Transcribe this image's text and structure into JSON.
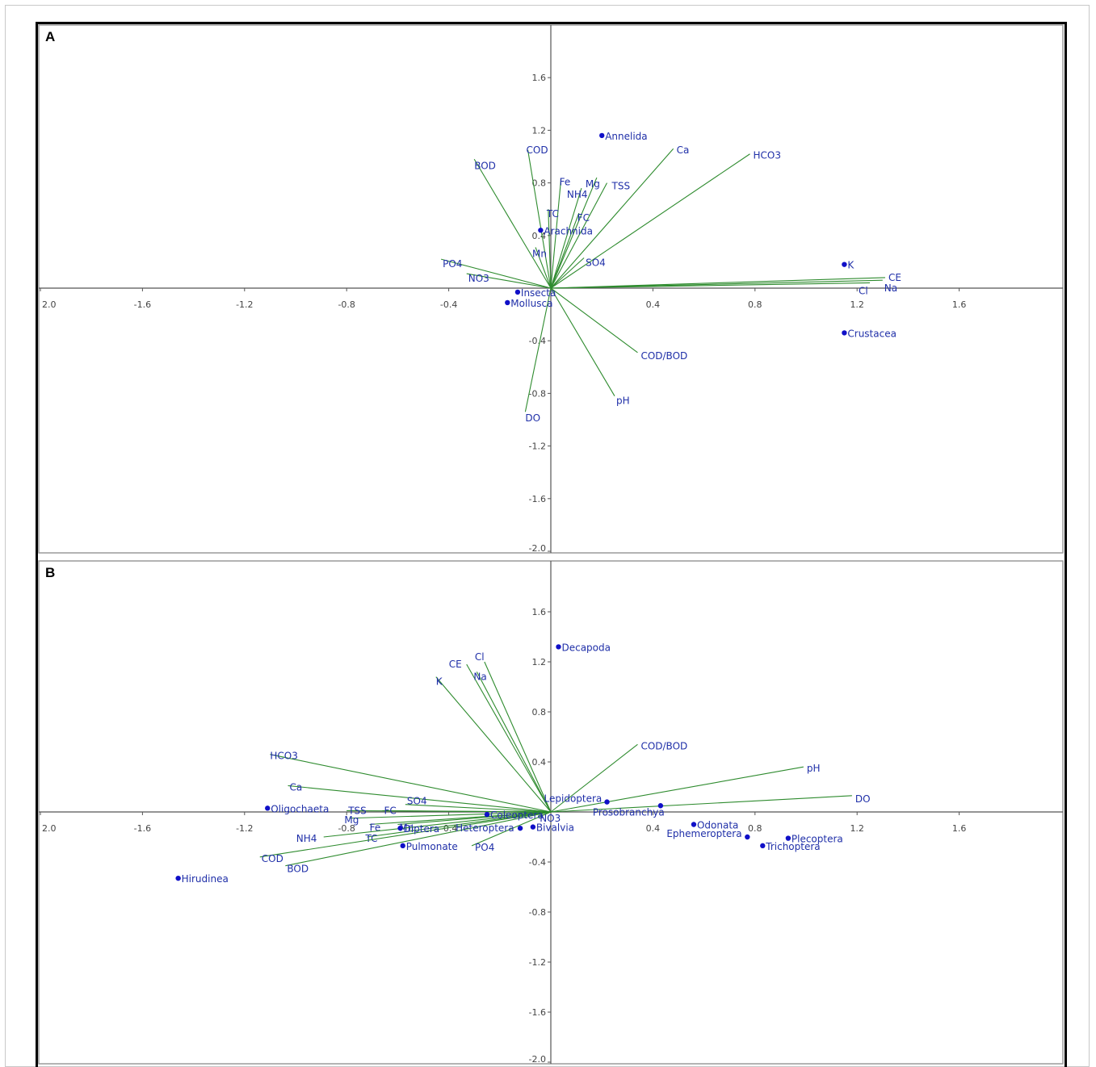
{
  "chart_data": [
    {
      "type": "biplot",
      "panel_label": "A",
      "x_ticks": [
        "2.0",
        "-1.6",
        "-1.2",
        "-0.8",
        "-0.4",
        "0.4",
        "0.8",
        "1.2",
        "1.6"
      ],
      "y_ticks": [
        "1.6",
        "1.2",
        "0.8",
        "0.4",
        "-0.4",
        "-0.8",
        "-1.2",
        "-1.6",
        "-2.0"
      ],
      "xlim": [
        -2.0,
        2.0
      ],
      "ylim": [
        -2.0,
        2.0
      ],
      "vectors": [
        {
          "name": "COD",
          "x": -0.09,
          "y": 1.05
        },
        {
          "name": "BOD",
          "x": -0.3,
          "y": 0.98
        },
        {
          "name": "Fe",
          "x": 0.04,
          "y": 0.83
        },
        {
          "name": "Mg",
          "x": 0.18,
          "y": 0.84
        },
        {
          "name": "NH4",
          "x": 0.12,
          "y": 0.76
        },
        {
          "name": "TSS",
          "x": 0.22,
          "y": 0.8
        },
        {
          "name": "TC",
          "x": -0.01,
          "y": 0.6
        },
        {
          "name": "FC",
          "x": 0.11,
          "y": 0.57
        },
        {
          "name": "Ca",
          "x": 0.48,
          "y": 1.06
        },
        {
          "name": "HCO3",
          "x": 0.78,
          "y": 1.02
        },
        {
          "name": "Mn",
          "x": -0.06,
          "y": 0.31
        },
        {
          "name": "SO4",
          "x": 0.13,
          "y": 0.23
        },
        {
          "name": "PO4",
          "x": -0.43,
          "y": 0.22
        },
        {
          "name": "NO3",
          "x": -0.33,
          "y": 0.11
        },
        {
          "name": "CE",
          "x": 1.31,
          "y": 0.08
        },
        {
          "name": "Cl",
          "x": 1.25,
          "y": 0.04
        },
        {
          "name": "Na",
          "x": 1.3,
          "y": 0.06
        },
        {
          "name": "COD/BOD",
          "x": 0.34,
          "y": -0.49
        },
        {
          "name": "pH",
          "x": 0.25,
          "y": -0.82
        },
        {
          "name": "DO",
          "x": -0.1,
          "y": -0.94
        }
      ],
      "points": [
        {
          "name": "Annelida",
          "x": 0.2,
          "y": 1.16
        },
        {
          "name": "Arachnida",
          "x": -0.04,
          "y": 0.44
        },
        {
          "name": "Insecta",
          "x": -0.13,
          "y": -0.03
        },
        {
          "name": "Mollusca",
          "x": -0.17,
          "y": -0.11
        },
        {
          "name": "K",
          "x": 1.15,
          "y": 0.18
        },
        {
          "name": "Crustacea",
          "x": 1.15,
          "y": -0.34
        }
      ]
    },
    {
      "type": "biplot",
      "panel_label": "B",
      "x_ticks": [
        "2.0",
        "-1.6",
        "-1.2",
        "-0.8",
        "-0.4",
        "0.4",
        "0.8",
        "1.2",
        "1.6"
      ],
      "y_ticks": [
        "1.6",
        "1.2",
        "0.8",
        "0.4",
        "-0.4",
        "-0.8",
        "-1.2",
        "-1.6",
        "-2.0"
      ],
      "xlim": [
        -2.0,
        2.0
      ],
      "ylim": [
        -2.0,
        2.0
      ],
      "vectors": [
        {
          "name": "Cl",
          "x": -0.26,
          "y": 1.2
        },
        {
          "name": "CE",
          "x": -0.33,
          "y": 1.18
        },
        {
          "name": "Na",
          "x": -0.29,
          "y": 1.12
        },
        {
          "name": "K",
          "x": -0.45,
          "y": 1.08
        },
        {
          "name": "HCO3",
          "x": -1.1,
          "y": 0.46
        },
        {
          "name": "Ca",
          "x": -1.03,
          "y": 0.21
        },
        {
          "name": "TSS",
          "x": -0.8,
          "y": 0.01
        },
        {
          "name": "FC",
          "x": -0.66,
          "y": 0.01
        },
        {
          "name": "SO4",
          "x": -0.57,
          "y": 0.06
        },
        {
          "name": "Mg",
          "x": -0.79,
          "y": -0.05
        },
        {
          "name": "Fe",
          "x": -0.71,
          "y": -0.1
        },
        {
          "name": "Mn",
          "x": -0.6,
          "y": -0.1
        },
        {
          "name": "NH4",
          "x": -0.89,
          "y": -0.2
        },
        {
          "name": "TC",
          "x": -0.72,
          "y": -0.2
        },
        {
          "name": "COD",
          "x": -1.14,
          "y": -0.36
        },
        {
          "name": "BOD",
          "x": -1.04,
          "y": -0.43
        },
        {
          "name": "PO4",
          "x": -0.31,
          "y": -0.27
        },
        {
          "name": "NO3",
          "x": -0.05,
          "y": -0.04
        },
        {
          "name": "COD/BOD",
          "x": 0.34,
          "y": 0.54
        },
        {
          "name": "pH",
          "x": 0.99,
          "y": 0.36
        },
        {
          "name": "DO",
          "x": 1.18,
          "y": 0.13
        }
      ],
      "points": [
        {
          "name": "Decapoda",
          "x": 0.03,
          "y": 1.32
        },
        {
          "name": "Oligochaeta",
          "x": -1.11,
          "y": 0.03
        },
        {
          "name": "Coleoptera",
          "x": -0.25,
          "y": -0.02
        },
        {
          "name": "Diptera",
          "x": -0.59,
          "y": -0.13
        },
        {
          "name": "Heteroptera",
          "x": -0.12,
          "y": -0.13
        },
        {
          "name": "Bivalvia",
          "x": -0.07,
          "y": -0.12
        },
        {
          "name": "Pulmonate",
          "x": -0.58,
          "y": -0.27
        },
        {
          "name": "Hirudinea",
          "x": -1.46,
          "y": -0.53
        },
        {
          "name": "Lepidoptera",
          "x": 0.22,
          "y": 0.08
        },
        {
          "name": "Prosobranchya",
          "x": 0.43,
          "y": 0.05
        },
        {
          "name": "Odonata",
          "x": 0.56,
          "y": -0.1
        },
        {
          "name": "Ephemeroptera",
          "x": 0.77,
          "y": -0.2
        },
        {
          "name": "Plecoptera",
          "x": 0.93,
          "y": -0.21
        },
        {
          "name": "Trichoptera",
          "x": 0.83,
          "y": -0.27
        }
      ]
    }
  ],
  "colors": {
    "vector": "#2e8b2e",
    "label": "#1f2fa8",
    "point": "#1010c8",
    "axis": "#555555",
    "frame": "#000000"
  }
}
